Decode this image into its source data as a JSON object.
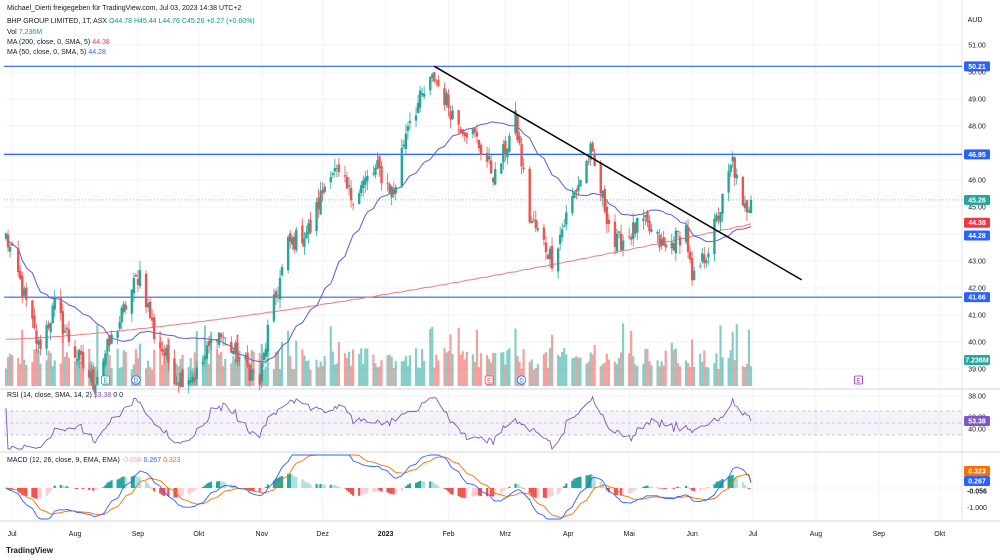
{
  "attribution": "Michael_Dierti freigegeben für TradingView.com, Jul 03, 2023 14:38 UTC+2",
  "footer": "TradingView",
  "legend": {
    "symbol": "BHP GROUP LIMITED, 1T, ASX",
    "open": "O44.78",
    "high": "H45.44",
    "low": "L44.76",
    "close": "C45.26",
    "change": "+0.27 (+0.60%)",
    "vol_label": "Vol",
    "vol_value": "7.236M",
    "ma200_label": "MA (200, close, 0, SMA, 5)",
    "ma200_value": "44.38",
    "ma50_label": "MA (50, close, 0, SMA, 5)",
    "ma50_value": "44.28",
    "rsi_label": "RSI (14, close, SMA, 14, 2)",
    "rsi_value": "53.38",
    "rsi_extra": "0  0",
    "macd_label": "MACD (12, 26, close, 9, EMA, EMA)",
    "macd_hist": "-0.056",
    "macd_line": "0.267",
    "macd_signal": "0.323"
  },
  "colors": {
    "up": "#26a69a",
    "down": "#ef5350",
    "ma50": "#5b5bd6",
    "ma200": "#ef7b7b",
    "level": "#2962ff",
    "trend": "#000000",
    "rsi": "#7e57c2",
    "macd": "#2962ff",
    "signal": "#ff6d00"
  },
  "chart_data": [
    {
      "type": "candlestick",
      "title": "BHP GROUP LIMITED, 1T, ASX",
      "currency": "AUD",
      "ylim": [
        38.0,
        51.0
      ],
      "y_ticks": [
        38,
        39,
        40,
        41,
        42,
        43,
        44,
        45,
        46,
        47,
        48,
        49,
        50,
        51
      ],
      "x_ticks": [
        "Jul",
        "Aug",
        "Sep",
        "Okt",
        "Nov",
        "Dez",
        "2023",
        "Feb",
        "Mrz",
        "Apr",
        "Mai",
        "Jun",
        "Jul",
        "Aug",
        "Sep",
        "Okt"
      ],
      "horizontal_levels": [
        50.21,
        46.95,
        41.66
      ],
      "trendline": {
        "from": [
          "2023-01-25",
          50.21
        ],
        "to": [
          "2023-07-25",
          42.3
        ]
      },
      "last_price": 45.26,
      "ma200_last": 44.38,
      "ma50_last": 44.28,
      "volume_last": "7.236M",
      "event_markers": [
        {
          "date": "2022-08-16",
          "label": "E"
        },
        {
          "date": "2022-08-31",
          "label": "D"
        },
        {
          "date": "2023-02-21",
          "label": "E"
        },
        {
          "date": "2023-03-09",
          "label": "D"
        },
        {
          "date": "2023-08-22",
          "label": "E"
        }
      ],
      "close_path": [
        [
          "2022-06-28",
          43.9
        ],
        [
          "2022-07-05",
          42.2
        ],
        [
          "2022-07-14",
          39.8
        ],
        [
          "2022-07-22",
          41.3
        ],
        [
          "2022-08-01",
          39.6
        ],
        [
          "2022-08-10",
          38.5
        ],
        [
          "2022-08-22",
          40.6
        ],
        [
          "2022-08-30",
          42.1
        ],
        [
          "2022-09-02",
          42.6
        ],
        [
          "2022-09-09",
          40.3
        ],
        [
          "2022-09-20",
          38.7
        ],
        [
          "2022-09-30",
          38.8
        ],
        [
          "2022-10-10",
          40.4
        ],
        [
          "2022-10-20",
          39.5
        ],
        [
          "2022-10-31",
          38.5
        ],
        [
          "2022-11-04",
          40.4
        ],
        [
          "2022-11-14",
          43.6
        ],
        [
          "2022-11-25",
          44.2
        ],
        [
          "2022-12-05",
          46.5
        ],
        [
          "2022-12-15",
          45.4
        ],
        [
          "2022-12-28",
          46.4
        ],
        [
          "2023-01-05",
          45.5
        ],
        [
          "2023-01-12",
          48.2
        ],
        [
          "2023-01-25",
          49.8
        ],
        [
          "2023-02-05",
          48.2
        ],
        [
          "2023-02-14",
          47.6
        ],
        [
          "2023-02-24",
          46.1
        ],
        [
          "2023-03-06",
          48.2
        ],
        [
          "2023-03-13",
          44.6
        ],
        [
          "2023-03-24",
          43.1
        ],
        [
          "2023-04-03",
          45.3
        ],
        [
          "2023-04-12",
          47.0
        ],
        [
          "2023-04-24",
          43.6
        ],
        [
          "2023-05-08",
          44.4
        ],
        [
          "2023-05-19",
          43.4
        ],
        [
          "2023-05-29",
          44.2
        ],
        [
          "2023-06-01",
          42.1
        ],
        [
          "2023-06-09",
          43.5
        ],
        [
          "2023-06-16",
          45.2
        ],
        [
          "2023-06-21",
          46.7
        ],
        [
          "2023-06-26",
          44.8
        ],
        [
          "2023-06-30",
          45.26
        ]
      ]
    },
    {
      "type": "line",
      "title": "RSI (14, close, SMA, 14, 2)",
      "ylim": [
        20,
        80
      ],
      "y_ticks": [
        40,
        60
      ],
      "guides": [
        30,
        50,
        70
      ],
      "last": 53.38
    },
    {
      "type": "line",
      "title": "MACD (12, 26, close, 9, EMA, EMA)",
      "ylim": [
        -1.3,
        1.4
      ],
      "y_ticks": [
        1.0,
        -1.0
      ],
      "series": [
        {
          "name": "MACD",
          "last": 0.267
        },
        {
          "name": "Signal",
          "last": 0.323
        },
        {
          "name": "Histogram",
          "last": -0.056
        }
      ]
    }
  ]
}
